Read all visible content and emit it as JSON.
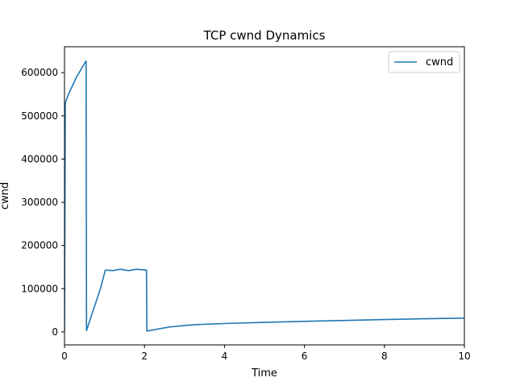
{
  "chart_data": {
    "type": "line",
    "title": "TCP cwnd Dynamics",
    "xlabel": "Time",
    "ylabel": "cwnd",
    "xlim": [
      0,
      10
    ],
    "ylim": [
      -30000,
      660000
    ],
    "xticks": [
      0,
      2,
      4,
      6,
      8,
      10
    ],
    "yticks": [
      0,
      100000,
      200000,
      300000,
      400000,
      500000,
      600000
    ],
    "grid": false,
    "legend": {
      "position": "top-right",
      "entries": [
        "cwnd"
      ]
    },
    "series": [
      {
        "name": "cwnd",
        "color": "#1f77b4",
        "points": [
          [
            0.0,
            0
          ],
          [
            0.02,
            530000
          ],
          [
            0.1,
            550000
          ],
          [
            0.3,
            590000
          ],
          [
            0.54,
            627000
          ],
          [
            0.54,
            600000
          ],
          [
            0.55,
            3000
          ],
          [
            0.7,
            45000
          ],
          [
            0.9,
            100000
          ],
          [
            1.02,
            143000
          ],
          [
            1.2,
            142000
          ],
          [
            1.4,
            145000
          ],
          [
            1.6,
            142000
          ],
          [
            1.8,
            145000
          ],
          [
            2.05,
            143000
          ],
          [
            2.05,
            140000
          ],
          [
            2.06,
            2000
          ],
          [
            2.3,
            6000
          ],
          [
            2.6,
            11000
          ],
          [
            3.0,
            15000
          ],
          [
            3.3,
            17000
          ],
          [
            4.0,
            19500
          ],
          [
            5.0,
            22000
          ],
          [
            6.0,
            24500
          ],
          [
            7.0,
            26500
          ],
          [
            8.0,
            28500
          ],
          [
            9.0,
            30500
          ],
          [
            10.0,
            32000
          ]
        ]
      }
    ]
  }
}
